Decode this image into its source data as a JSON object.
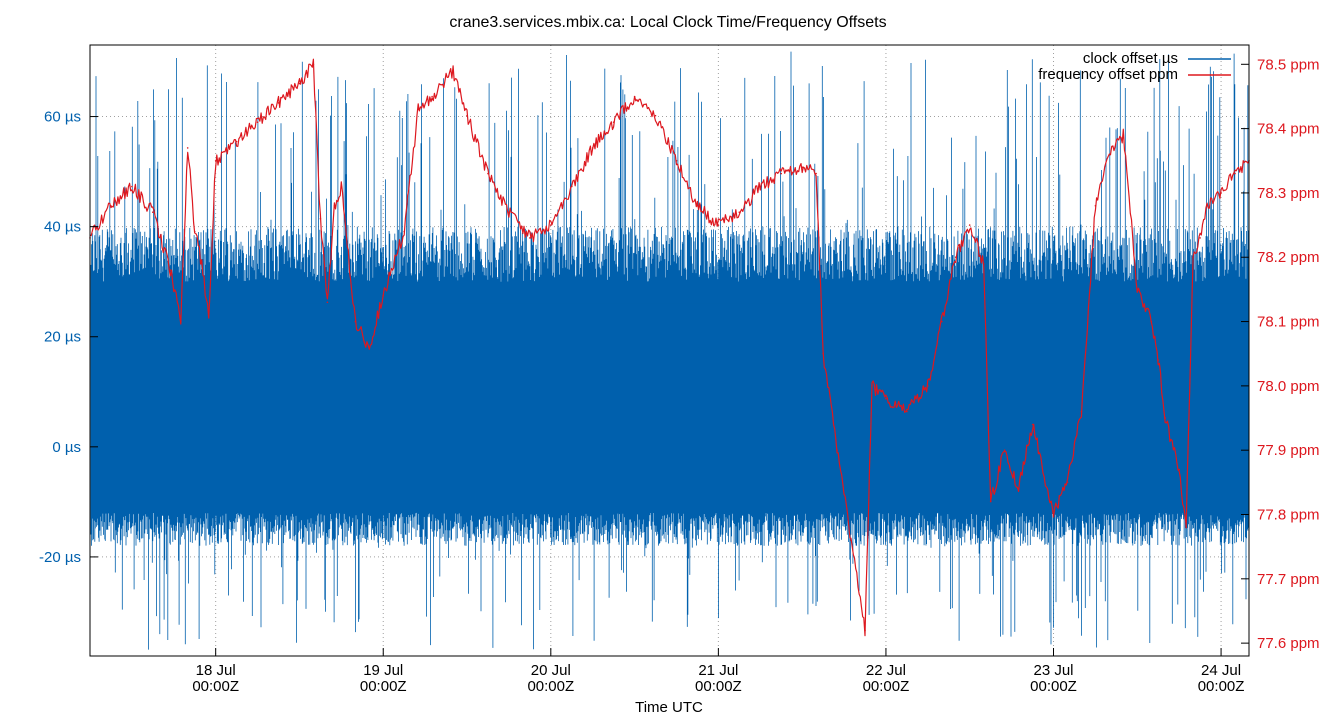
{
  "chart_data": {
    "type": "line",
    "title": "crane3.services.mbix.ca: Local Clock Time/Frequency Offsets",
    "xlabel": "Time UTC",
    "ylabel_left": "",
    "ylabel_right": "",
    "x_range": [
      "2023-07-17T06:00Z",
      "2023-07-24T04:00Z"
    ],
    "y_left_range": [
      -38,
      73
    ],
    "y_right_range": [
      77.58,
      78.53
    ],
    "grid": true,
    "legend_position": "top-right",
    "x_ticks": [
      {
        "line1": "18 Jul",
        "line2": "00:00Z",
        "x": "2023-07-18T00:00Z"
      },
      {
        "line1": "19 Jul",
        "line2": "00:00Z",
        "x": "2023-07-19T00:00Z"
      },
      {
        "line1": "20 Jul",
        "line2": "00:00Z",
        "x": "2023-07-20T00:00Z"
      },
      {
        "line1": "21 Jul",
        "line2": "00:00Z",
        "x": "2023-07-21T00:00Z"
      },
      {
        "line1": "22 Jul",
        "line2": "00:00Z",
        "x": "2023-07-22T00:00Z"
      },
      {
        "line1": "23 Jul",
        "line2": "00:00Z",
        "x": "2023-07-23T00:00Z"
      },
      {
        "line1": "24 Jul",
        "line2": "00:00Z",
        "x": "2023-07-24T00:00Z"
      }
    ],
    "y_left_ticks": [
      {
        "value": -20,
        "label": "-20 µs"
      },
      {
        "value": 0,
        "label": "0 µs"
      },
      {
        "value": 20,
        "label": "20 µs"
      },
      {
        "value": 40,
        "label": "40 µs"
      },
      {
        "value": 60,
        "label": "60 µs"
      }
    ],
    "y_right_ticks": [
      {
        "value": 77.6,
        "label": "77.6 ppm"
      },
      {
        "value": 77.7,
        "label": "77.7 ppm"
      },
      {
        "value": 77.8,
        "label": "77.8 ppm"
      },
      {
        "value": 77.9,
        "label": "77.9 ppm"
      },
      {
        "value": 78.0,
        "label": "78.0 ppm"
      },
      {
        "value": 78.1,
        "label": "78.1 ppm"
      },
      {
        "value": 78.2,
        "label": "78.2 ppm"
      },
      {
        "value": 78.3,
        "label": "78.3 ppm"
      },
      {
        "value": 78.4,
        "label": "78.4 ppm"
      },
      {
        "value": 78.5,
        "label": "78.5 ppm"
      }
    ],
    "series": [
      {
        "name": "clock offset µs",
        "axis": "left",
        "color": "#0060ad",
        "band_typical": [
          -12,
          30
        ],
        "band_extreme": [
          -37,
          72
        ]
      },
      {
        "name": "frequency offset ppm",
        "axis": "right",
        "color": "#dd181f",
        "x": [
          "2023-07-17T06:00Z",
          "2023-07-17T09:00Z",
          "2023-07-17T12:00Z",
          "2023-07-17T15:00Z",
          "2023-07-17T17:30Z",
          "2023-07-17T19:00Z",
          "2023-07-17T20:00Z",
          "2023-07-17T21:00Z",
          "2023-07-17T22:00Z",
          "2023-07-17T23:00Z",
          "2023-07-18T00:00Z",
          "2023-07-18T03:00Z",
          "2023-07-18T06:00Z",
          "2023-07-18T09:00Z",
          "2023-07-18T12:00Z",
          "2023-07-18T14:00Z",
          "2023-07-18T15:00Z",
          "2023-07-18T16:00Z",
          "2023-07-18T17:00Z",
          "2023-07-18T18:00Z",
          "2023-07-18T20:00Z",
          "2023-07-18T22:00Z",
          "2023-07-19T00:00Z",
          "2023-07-19T03:00Z",
          "2023-07-19T05:00Z",
          "2023-07-19T07:00Z",
          "2023-07-19T10:00Z",
          "2023-07-19T12:00Z",
          "2023-07-19T15:00Z",
          "2023-07-19T18:00Z",
          "2023-07-19T21:00Z",
          "2023-07-20T00:00Z",
          "2023-07-20T03:00Z",
          "2023-07-20T06:00Z",
          "2023-07-20T09:00Z",
          "2023-07-20T12:00Z",
          "2023-07-20T15:00Z",
          "2023-07-20T18:00Z",
          "2023-07-20T21:00Z",
          "2023-07-21T00:00Z",
          "2023-07-21T03:00Z",
          "2023-07-21T06:00Z",
          "2023-07-21T09:00Z",
          "2023-07-21T12:00Z",
          "2023-07-21T14:00Z",
          "2023-07-21T15:00Z",
          "2023-07-21T17:00Z",
          "2023-07-21T19:00Z",
          "2023-07-21T21:00Z",
          "2023-07-21T22:00Z",
          "2023-07-22T00:00Z",
          "2023-07-22T03:00Z",
          "2023-07-22T06:00Z",
          "2023-07-22T08:00Z",
          "2023-07-22T10:00Z",
          "2023-07-22T12:00Z",
          "2023-07-22T14:00Z",
          "2023-07-22T15:00Z",
          "2023-07-22T17:00Z",
          "2023-07-22T19:00Z",
          "2023-07-22T21:00Z",
          "2023-07-23T00:00Z",
          "2023-07-23T02:00Z",
          "2023-07-23T04:00Z",
          "2023-07-23T06:00Z",
          "2023-07-23T08:00Z",
          "2023-07-23T10:00Z",
          "2023-07-23T12:00Z",
          "2023-07-23T14:00Z",
          "2023-07-23T15:00Z",
          "2023-07-23T16:00Z",
          "2023-07-23T18:00Z",
          "2023-07-23T19:00Z",
          "2023-07-23T20:00Z",
          "2023-07-23T21:00Z",
          "2023-07-23T22:00Z",
          "2023-07-24T00:00Z",
          "2023-07-24T02:00Z",
          "2023-07-24T04:00Z"
        ],
        "values": [
          78.23,
          78.28,
          78.31,
          78.27,
          78.18,
          78.1,
          78.37,
          78.24,
          78.19,
          78.11,
          78.35,
          78.38,
          78.41,
          78.44,
          78.47,
          78.5,
          78.26,
          78.13,
          78.28,
          78.31,
          78.1,
          78.06,
          78.14,
          78.24,
          78.43,
          78.45,
          78.49,
          78.42,
          78.33,
          78.27,
          78.23,
          78.25,
          78.31,
          78.37,
          78.41,
          78.45,
          78.42,
          78.35,
          78.28,
          78.25,
          78.27,
          78.31,
          78.33,
          78.34,
          78.33,
          78.05,
          77.9,
          77.76,
          77.62,
          78.0,
          77.98,
          77.96,
          78.0,
          78.1,
          78.2,
          78.25,
          78.19,
          77.82,
          77.9,
          77.84,
          77.94,
          77.8,
          77.85,
          77.96,
          78.28,
          78.36,
          78.39,
          78.15,
          78.1,
          78.04,
          77.95,
          77.87,
          77.78,
          78.2,
          78.23,
          78.28,
          78.3,
          78.33,
          78.35
        ]
      }
    ]
  }
}
